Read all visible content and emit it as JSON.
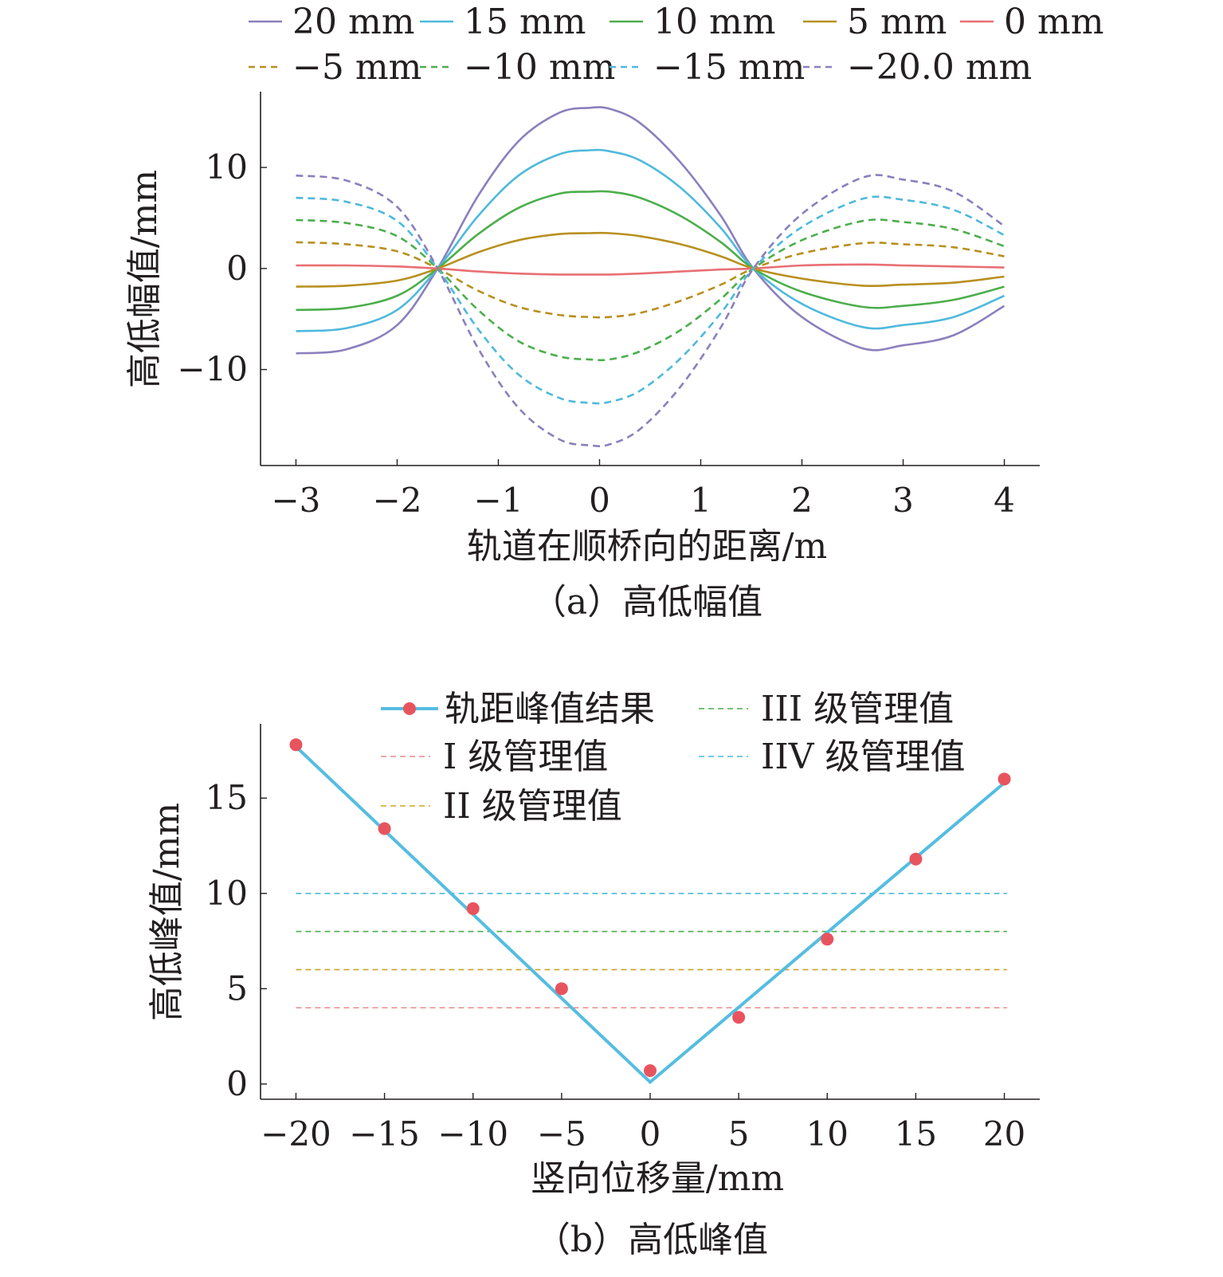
{
  "chart_data": [
    {
      "type": "line",
      "caption": "（a）高低幅值",
      "xlabel": "轨道在顺桥向的距离/m",
      "ylabel": "高低幅值/mm",
      "xlim": [
        -3.35,
        4.35
      ],
      "ylim": [
        -19.5,
        17.5
      ],
      "xticks": [
        -3,
        -2,
        -1,
        0,
        1,
        2,
        3,
        4
      ],
      "xtick_labels": [
        "−3",
        "−2",
        "−1",
        "0",
        "1",
        "2",
        "3",
        "4"
      ],
      "yticks": [
        -10,
        0,
        10
      ],
      "ytick_labels": [
        "−10",
        "0",
        "10"
      ],
      "legend": {
        "placement": "top",
        "columns": 5
      },
      "x": [
        -3.0,
        -2.5,
        -2.0,
        -1.6,
        -1.2,
        -0.8,
        -0.4,
        -0.1,
        0.1,
        0.4,
        0.8,
        1.2,
        1.52,
        2.0,
        2.6,
        3.0,
        3.5,
        4.0
      ],
      "series": [
        {
          "name": "20 mm",
          "style": "solid",
          "color": "#8c7fbd",
          "values": [
            -8.4,
            -8.0,
            -5.6,
            0.0,
            7.2,
            12.6,
            15.4,
            15.9,
            15.8,
            14.4,
            10.5,
            5.2,
            0.0,
            -4.8,
            -7.9,
            -7.6,
            -6.6,
            -3.7
          ]
        },
        {
          "name": "15 mm",
          "style": "solid",
          "color": "#4fb9dc",
          "values": [
            -6.2,
            -5.9,
            -4.1,
            0.0,
            5.2,
            9.2,
            11.3,
            11.7,
            11.6,
            10.7,
            8.0,
            4.0,
            0.0,
            -3.5,
            -5.8,
            -5.6,
            -4.8,
            -2.7
          ]
        },
        {
          "name": "10 mm",
          "style": "solid",
          "color": "#4cae4c",
          "values": [
            -4.1,
            -3.9,
            -2.7,
            0.0,
            3.4,
            6.0,
            7.4,
            7.6,
            7.6,
            7.0,
            5.2,
            2.6,
            0.0,
            -2.3,
            -3.8,
            -3.7,
            -3.1,
            -1.8
          ]
        },
        {
          "name": "5 mm",
          "style": "solid",
          "color": "#b8901f",
          "values": [
            -1.8,
            -1.7,
            -1.2,
            0.0,
            1.6,
            2.8,
            3.4,
            3.5,
            3.5,
            3.2,
            2.4,
            1.2,
            0.0,
            -1.0,
            -1.7,
            -1.6,
            -1.4,
            -0.8
          ]
        },
        {
          "name": "0 mm",
          "style": "solid",
          "color": "#e86f74",
          "values": [
            0.3,
            0.3,
            0.2,
            0.0,
            -0.3,
            -0.5,
            -0.6,
            -0.6,
            -0.6,
            -0.5,
            -0.3,
            -0.1,
            0.0,
            0.3,
            0.4,
            0.3,
            0.2,
            0.1
          ]
        },
        {
          "name": "−5 mm",
          "style": "dashed",
          "color": "#b8901f",
          "values": [
            2.6,
            2.4,
            1.7,
            0.0,
            -2.2,
            -3.8,
            -4.6,
            -4.8,
            -4.8,
            -4.4,
            -3.2,
            -1.6,
            0.0,
            1.5,
            2.5,
            2.4,
            2.1,
            1.2
          ]
        },
        {
          "name": "−10 mm",
          "style": "dashed",
          "color": "#4cae4c",
          "values": [
            4.8,
            4.5,
            3.2,
            0.0,
            -4.1,
            -7.2,
            -8.7,
            -9.0,
            -9.0,
            -8.2,
            -6.1,
            -3.0,
            0.0,
            2.8,
            4.7,
            4.6,
            3.9,
            2.2
          ]
        },
        {
          "name": "−15 mm",
          "style": "dashed",
          "color": "#4fb9dc",
          "values": [
            7.0,
            6.6,
            4.7,
            0.0,
            -6.0,
            -10.5,
            -12.8,
            -13.3,
            -13.2,
            -12.1,
            -8.9,
            -4.4,
            0.0,
            4.1,
            6.9,
            6.8,
            5.8,
            3.3
          ]
        },
        {
          "name": "−20.0 mm",
          "style": "dashed",
          "color": "#8c7fbd",
          "values": [
            9.2,
            8.7,
            6.1,
            0.0,
            -7.9,
            -13.8,
            -16.9,
            -17.5,
            -17.4,
            -15.9,
            -11.7,
            -5.8,
            0.0,
            5.4,
            9.0,
            8.8,
            7.6,
            4.2
          ]
        }
      ]
    },
    {
      "type": "line",
      "caption": "（b）高低峰值",
      "xlabel": "竖向位移量/mm",
      "ylabel": "高低峰值/mm",
      "xlim": [
        -22,
        22
      ],
      "ylim": [
        -0.8,
        18.9
      ],
      "xticks": [
        -20,
        -15,
        -10,
        -5,
        0,
        5,
        10,
        15,
        20
      ],
      "xtick_labels": [
        "−20",
        "−15",
        "−10",
        "−5",
        "0",
        "5",
        "10",
        "15",
        "20"
      ],
      "yticks": [
        0,
        5,
        10,
        15
      ],
      "ytick_labels": [
        "0",
        "5",
        "10",
        "15"
      ],
      "legend": {
        "placement": "top",
        "columns": 2
      },
      "points": {
        "name": "轨距峰值结果",
        "color": "#e8545e",
        "line_color": "#55bde0",
        "x": [
          -20,
          -15,
          -10,
          -5,
          0,
          5,
          10,
          15,
          20
        ],
        "values": [
          17.8,
          13.4,
          9.2,
          5.0,
          0.7,
          3.5,
          7.6,
          11.8,
          16.0
        ]
      },
      "fit_line": {
        "x": [
          -20,
          0,
          20
        ],
        "values": [
          17.7,
          0.1,
          15.8
        ]
      },
      "thresholds": [
        {
          "name": "I 级管理值",
          "value": 4,
          "color": "#e88a8e"
        },
        {
          "name": "II 级管理值",
          "value": 6,
          "color": "#c9a52a"
        },
        {
          "name": "III 级管理值",
          "value": 8,
          "color": "#4cae4c"
        },
        {
          "name": "IIV 级管理值",
          "value": 10,
          "color": "#4fb9dc"
        }
      ]
    }
  ]
}
